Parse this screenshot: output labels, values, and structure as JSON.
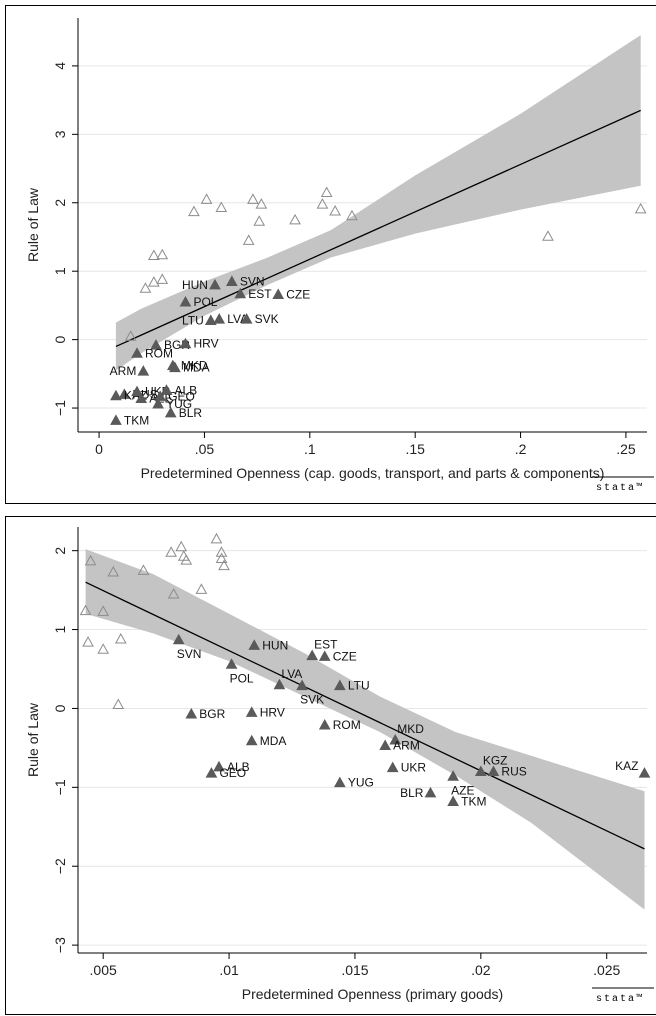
{
  "colors": {
    "ci_band": "#c4c4c4",
    "fit_line": "#000000",
    "filled_marker": "#5a5a5a",
    "hollow_marker": "#8c8c8c"
  },
  "watermark": "stata™",
  "chart_data": [
    {
      "type": "scatter",
      "title": "",
      "xlabel": "Predetermined Openness (cap. goods, transport, and parts & components)",
      "ylabel": "Rule of Law",
      "xlim": [
        -0.01,
        0.26
      ],
      "ylim": [
        -1.35,
        4.7
      ],
      "x_ticks": [
        0,
        0.05,
        0.1,
        0.15,
        0.2,
        0.25
      ],
      "x_tick_labels": [
        "0",
        ".05",
        ".1",
        ".15",
        ".2",
        ".25"
      ],
      "y_ticks": [
        -1,
        0,
        1,
        2,
        3,
        4
      ],
      "y_tick_labels": [
        "−1",
        "0",
        "1",
        "2",
        "3",
        "4"
      ],
      "grid": "horizontal",
      "fit_line": {
        "x": [
          0.008,
          0.257
        ],
        "y": [
          -0.1,
          3.35
        ]
      },
      "ci_band": {
        "x": [
          0.008,
          0.02,
          0.05,
          0.08,
          0.11,
          0.15,
          0.2,
          0.257
        ],
        "upper": [
          0.25,
          0.45,
          0.85,
          1.2,
          1.6,
          2.4,
          3.3,
          4.45
        ],
        "lower": [
          -0.45,
          -0.2,
          0.35,
          0.8,
          1.2,
          1.55,
          1.9,
          2.25
        ]
      },
      "labeled_points": [
        {
          "label": "HUN",
          "x": 0.055,
          "y": 0.8,
          "label_pos": "left"
        },
        {
          "label": "SVN",
          "x": 0.063,
          "y": 0.85,
          "label_pos": "right"
        },
        {
          "label": "POL",
          "x": 0.041,
          "y": 0.55,
          "label_pos": "right"
        },
        {
          "label": "EST",
          "x": 0.067,
          "y": 0.67,
          "label_pos": "right"
        },
        {
          "label": "CZE",
          "x": 0.085,
          "y": 0.66,
          "label_pos": "right"
        },
        {
          "label": "LVA",
          "x": 0.057,
          "y": 0.3,
          "label_pos": "right"
        },
        {
          "label": "LTU",
          "x": 0.053,
          "y": 0.28,
          "label_pos": "left"
        },
        {
          "label": "SVK",
          "x": 0.07,
          "y": 0.3,
          "label_pos": "right"
        },
        {
          "label": "BGR",
          "x": 0.027,
          "y": -0.08,
          "label_pos": "right"
        },
        {
          "label": "HRV",
          "x": 0.041,
          "y": -0.06,
          "label_pos": "right"
        },
        {
          "label": "ROM",
          "x": 0.018,
          "y": -0.2,
          "label_pos": "right"
        },
        {
          "label": "ARM",
          "x": 0.021,
          "y": -0.46,
          "label_pos": "left"
        },
        {
          "label": "MKD",
          "x": 0.035,
          "y": -0.38,
          "label_pos": "right"
        },
        {
          "label": "MDA",
          "x": 0.036,
          "y": -0.41,
          "label_pos": "right"
        },
        {
          "label": "RUS",
          "x": 0.012,
          "y": -0.8,
          "label_pos": "right"
        },
        {
          "label": "KAZ",
          "x": 0.008,
          "y": -0.82,
          "label_pos": "right"
        },
        {
          "label": "UKR",
          "x": 0.018,
          "y": -0.76,
          "label_pos": "right"
        },
        {
          "label": "AZE",
          "x": 0.02,
          "y": -0.86,
          "label_pos": "right"
        },
        {
          "label": "GEO",
          "x": 0.029,
          "y": -0.83,
          "label_pos": "right"
        },
        {
          "label": "ALB",
          "x": 0.032,
          "y": -0.74,
          "label_pos": "right"
        },
        {
          "label": "YUG",
          "x": 0.028,
          "y": -0.94,
          "label_pos": "right"
        },
        {
          "label": "BLR",
          "x": 0.034,
          "y": -1.07,
          "label_pos": "right"
        },
        {
          "label": "TKM",
          "x": 0.008,
          "y": -1.18,
          "label_pos": "right"
        }
      ],
      "hollow_points": [
        {
          "x": 0.015,
          "y": 0.05
        },
        {
          "x": 0.022,
          "y": 0.75
        },
        {
          "x": 0.026,
          "y": 0.84
        },
        {
          "x": 0.026,
          "y": 1.23
        },
        {
          "x": 0.03,
          "y": 0.88
        },
        {
          "x": 0.03,
          "y": 1.24
        },
        {
          "x": 0.045,
          "y": 1.87
        },
        {
          "x": 0.051,
          "y": 2.05
        },
        {
          "x": 0.058,
          "y": 1.93
        },
        {
          "x": 0.071,
          "y": 1.45
        },
        {
          "x": 0.073,
          "y": 2.05
        },
        {
          "x": 0.076,
          "y": 1.73
        },
        {
          "x": 0.077,
          "y": 1.98
        },
        {
          "x": 0.093,
          "y": 1.75
        },
        {
          "x": 0.106,
          "y": 1.98
        },
        {
          "x": 0.108,
          "y": 2.15
        },
        {
          "x": 0.112,
          "y": 1.88
        },
        {
          "x": 0.12,
          "y": 1.81
        },
        {
          "x": 0.213,
          "y": 1.51
        },
        {
          "x": 0.257,
          "y": 1.91
        }
      ]
    },
    {
      "type": "scatter",
      "title": "",
      "xlabel": "Predetermined Openness (primary goods)",
      "ylabel": "Rule of Law",
      "xlim": [
        0.004,
        0.0266
      ],
      "ylim": [
        -3.1,
        2.3
      ],
      "x_ticks": [
        0.005,
        0.01,
        0.015,
        0.02,
        0.025
      ],
      "x_tick_labels": [
        ".005",
        ".01",
        ".015",
        ".02",
        ".025"
      ],
      "y_ticks": [
        -3,
        -2,
        -1,
        0,
        1,
        2
      ],
      "y_tick_labels": [
        "−3",
        "−2",
        "−1",
        "0",
        "1",
        "2"
      ],
      "grid": "horizontal",
      "fit_line": {
        "x": [
          0.0043,
          0.0265
        ],
        "y": [
          1.6,
          -1.78
        ]
      },
      "ci_band": {
        "x": [
          0.0043,
          0.007,
          0.01,
          0.013,
          0.016,
          0.019,
          0.022,
          0.0265
        ],
        "upper": [
          2.02,
          1.7,
          1.2,
          0.7,
          0.15,
          -0.3,
          -0.6,
          -1.05
        ],
        "lower": [
          1.2,
          0.95,
          0.6,
          0.15,
          -0.3,
          -0.85,
          -1.45,
          -2.55
        ]
      },
      "labeled_points": [
        {
          "label": "SVN",
          "x": 0.008,
          "y": 0.87,
          "label_pos": "below"
        },
        {
          "label": "HUN",
          "x": 0.011,
          "y": 0.8,
          "label_pos": "right"
        },
        {
          "label": "EST",
          "x": 0.0133,
          "y": 0.67,
          "label_pos": "above-right"
        },
        {
          "label": "CZE",
          "x": 0.0138,
          "y": 0.66,
          "label_pos": "right"
        },
        {
          "label": "POL",
          "x": 0.0101,
          "y": 0.56,
          "label_pos": "below"
        },
        {
          "label": "LVA",
          "x": 0.012,
          "y": 0.3,
          "label_pos": "above-right"
        },
        {
          "label": "LTU",
          "x": 0.0144,
          "y": 0.29,
          "label_pos": "right"
        },
        {
          "label": "SVK",
          "x": 0.0129,
          "y": 0.29,
          "label_pos": "below"
        },
        {
          "label": "BGR",
          "x": 0.0085,
          "y": -0.07,
          "label_pos": "right"
        },
        {
          "label": "HRV",
          "x": 0.0109,
          "y": -0.05,
          "label_pos": "right"
        },
        {
          "label": "ROM",
          "x": 0.0138,
          "y": -0.21,
          "label_pos": "right"
        },
        {
          "label": "MDA",
          "x": 0.0109,
          "y": -0.41,
          "label_pos": "right"
        },
        {
          "label": "MKD",
          "x": 0.0166,
          "y": -0.4,
          "label_pos": "above-right"
        },
        {
          "label": "ARM",
          "x": 0.0162,
          "y": -0.47,
          "label_pos": "right"
        },
        {
          "label": "ALB",
          "x": 0.0096,
          "y": -0.74,
          "label_pos": "right"
        },
        {
          "label": "GEO",
          "x": 0.0093,
          "y": -0.82,
          "label_pos": "right"
        },
        {
          "label": "UKR",
          "x": 0.0165,
          "y": -0.75,
          "label_pos": "right"
        },
        {
          "label": "YUG",
          "x": 0.0144,
          "y": -0.94,
          "label_pos": "right"
        },
        {
          "label": "BLR",
          "x": 0.018,
          "y": -1.07,
          "label_pos": "left"
        },
        {
          "label": "AZE",
          "x": 0.0189,
          "y": -0.86,
          "label_pos": "below"
        },
        {
          "label": "KGZ",
          "x": 0.02,
          "y": -0.8,
          "label_pos": "above-right"
        },
        {
          "label": "RUS",
          "x": 0.0205,
          "y": -0.8,
          "label_pos": "right"
        },
        {
          "label": "TKM",
          "x": 0.0189,
          "y": -1.18,
          "label_pos": "right"
        },
        {
          "label": "KAZ",
          "x": 0.0265,
          "y": -0.82,
          "label_pos": "left-above"
        }
      ],
      "hollow_points": [
        {
          "x": 0.0043,
          "y": 1.24
        },
        {
          "x": 0.0044,
          "y": 0.84
        },
        {
          "x": 0.0045,
          "y": 1.87
        },
        {
          "x": 0.005,
          "y": 1.23
        },
        {
          "x": 0.005,
          "y": 0.75
        },
        {
          "x": 0.0054,
          "y": 1.73
        },
        {
          "x": 0.0056,
          "y": 0.05
        },
        {
          "x": 0.0057,
          "y": 0.88
        },
        {
          "x": 0.0066,
          "y": 1.75
        },
        {
          "x": 0.0077,
          "y": 1.98
        },
        {
          "x": 0.0078,
          "y": 1.45
        },
        {
          "x": 0.0081,
          "y": 2.05
        },
        {
          "x": 0.0082,
          "y": 1.93
        },
        {
          "x": 0.0083,
          "y": 1.88
        },
        {
          "x": 0.0089,
          "y": 1.51
        },
        {
          "x": 0.0095,
          "y": 2.15
        },
        {
          "x": 0.0097,
          "y": 1.98
        },
        {
          "x": 0.0098,
          "y": 1.81
        },
        {
          "x": 0.0097,
          "y": 1.9
        }
      ]
    }
  ]
}
